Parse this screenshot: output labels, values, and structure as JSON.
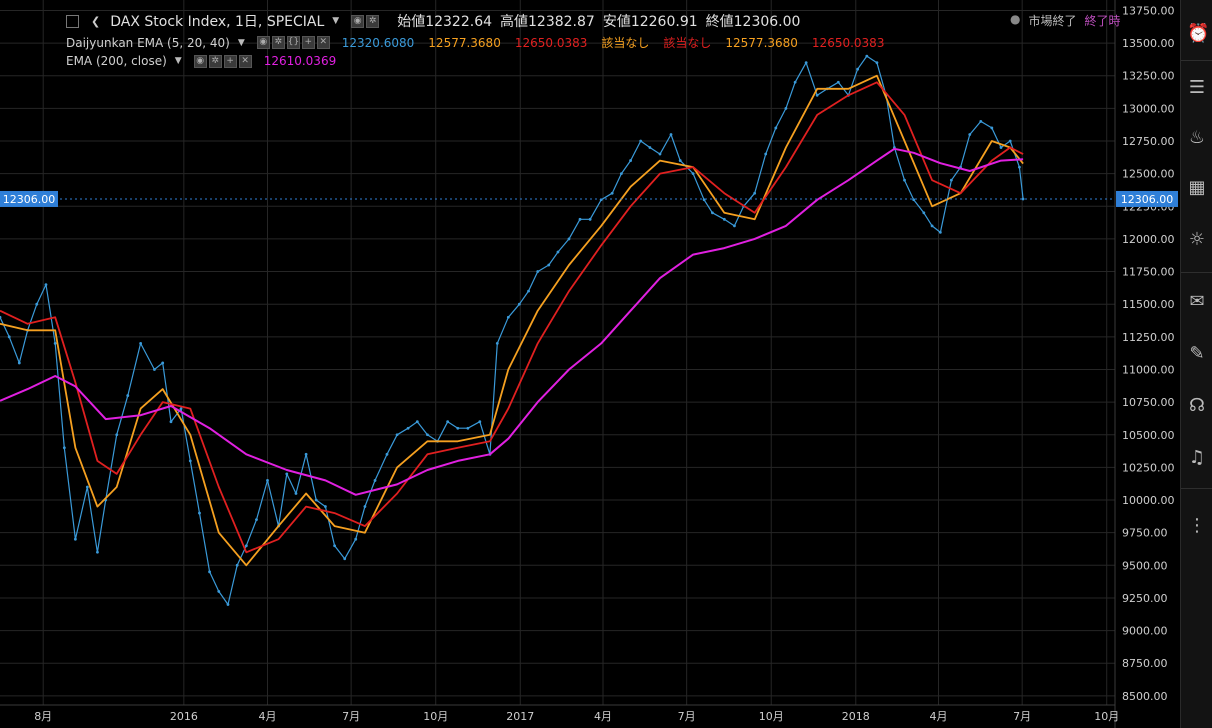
{
  "header": {
    "symbol_label": "DAX Stock Index, 1日, SPECIAL",
    "open_label": "始値",
    "open_value": "12322.64",
    "high_label": "高値",
    "high_value": "12382.87",
    "low_label": "安値",
    "low_value": "12260.91",
    "close_label": "終値",
    "close_value": "12306.00",
    "market_status": "市場終了",
    "market_close_time": "終了時"
  },
  "indicators": {
    "daijyunkan": {
      "label": "Daijyunkan EMA (5, 20, 40)",
      "v1": "12320.6080",
      "v2": "12577.3680",
      "v3": "12650.0383",
      "v4": "該当なし",
      "v5": "該当なし",
      "v6": "12577.3680",
      "v7": "12650.0383"
    },
    "ema200": {
      "label": "EMA (200, close)",
      "value": "12610.0369"
    }
  },
  "colors": {
    "price": "#3a9ad9",
    "ema5": "#3a9ad9",
    "ema20": "#f5a020",
    "ema40": "#e02020",
    "ema200": "#e020e0",
    "grid": "#262626",
    "axis_text": "#cfcfcf",
    "last_price_bg": "#2f7fd8"
  },
  "chart_data": {
    "type": "line",
    "title": "DAX Stock Index, 1日, SPECIAL",
    "ylim": [
      8430,
      13830
    ],
    "y_ticks": [
      8500,
      8750,
      9000,
      9250,
      9500,
      9750,
      10000,
      10250,
      10500,
      10750,
      11000,
      11250,
      11500,
      11750,
      12000,
      12250,
      12500,
      12750,
      13000,
      13250,
      13500,
      13750
    ],
    "y_tick_labels": [
      "8500.00",
      "8750.00",
      "9000.00",
      "9250.00",
      "9500.00",
      "9750.00",
      "10000.00",
      "10250.00",
      "10500.00",
      "10750.00",
      "11000.00",
      "11250.00",
      "11500.00",
      "11750.00",
      "12000.00",
      "12250.00",
      "12500.00",
      "12750.00",
      "13000.00",
      "13250.00",
      "13500.00",
      "13750.00"
    ],
    "x_start": "2015-06-15",
    "x_end": "2018-10-10",
    "x_ticks": [
      {
        "date": "2015-08-01",
        "label": "8月"
      },
      {
        "date": "2016-01-01",
        "label": "2016"
      },
      {
        "date": "2016-04-01",
        "label": "4月"
      },
      {
        "date": "2016-07-01",
        "label": "7月"
      },
      {
        "date": "2016-10-01",
        "label": "10月"
      },
      {
        "date": "2017-01-01",
        "label": "2017"
      },
      {
        "date": "2017-04-01",
        "label": "4月"
      },
      {
        "date": "2017-07-01",
        "label": "7月"
      },
      {
        "date": "2017-10-01",
        "label": "10月"
      },
      {
        "date": "2018-01-01",
        "label": "2018"
      },
      {
        "date": "2018-04-01",
        "label": "4月"
      },
      {
        "date": "2018-07-01",
        "label": "7月"
      },
      {
        "date": "2018-10-01",
        "label": "10月"
      }
    ],
    "last_price": 12306.0,
    "last_price_label": "12306.00",
    "series": [
      {
        "name": "Close",
        "x": [
          "2015-06-15",
          "2015-06-25",
          "2015-07-06",
          "2015-07-15",
          "2015-07-25",
          "2015-08-04",
          "2015-08-14",
          "2015-08-24",
          "2015-09-05",
          "2015-09-18",
          "2015-09-29",
          "2015-10-08",
          "2015-10-20",
          "2015-11-01",
          "2015-11-15",
          "2015-11-30",
          "2015-12-09",
          "2015-12-18",
          "2015-12-29",
          "2016-01-08",
          "2016-01-18",
          "2016-01-29",
          "2016-02-08",
          "2016-02-18",
          "2016-02-28",
          "2016-03-09",
          "2016-03-20",
          "2016-04-01",
          "2016-04-13",
          "2016-04-22",
          "2016-05-02",
          "2016-05-13",
          "2016-05-24",
          "2016-06-03",
          "2016-06-13",
          "2016-06-24",
          "2016-07-06",
          "2016-07-16",
          "2016-07-27",
          "2016-08-09",
          "2016-08-20",
          "2016-09-01",
          "2016-09-11",
          "2016-09-22",
          "2016-10-03",
          "2016-10-14",
          "2016-10-25",
          "2016-11-05",
          "2016-11-18",
          "2016-11-29",
          "2016-12-07",
          "2016-12-19",
          "2016-12-31",
          "2017-01-10",
          "2017-01-20",
          "2017-02-01",
          "2017-02-11",
          "2017-02-23",
          "2017-03-07",
          "2017-03-18",
          "2017-03-30",
          "2017-04-11",
          "2017-04-21",
          "2017-05-01",
          "2017-05-12",
          "2017-05-22",
          "2017-06-02",
          "2017-06-14",
          "2017-06-24",
          "2017-07-08",
          "2017-07-20",
          "2017-07-29",
          "2017-08-11",
          "2017-08-22",
          "2017-09-01",
          "2017-09-13",
          "2017-09-25",
          "2017-10-06",
          "2017-10-17",
          "2017-10-27",
          "2017-11-08",
          "2017-11-20",
          "2017-12-01",
          "2017-12-13",
          "2017-12-24",
          "2018-01-03",
          "2018-01-13",
          "2018-01-24",
          "2018-02-03",
          "2018-02-12",
          "2018-02-23",
          "2018-03-05",
          "2018-03-16",
          "2018-03-25",
          "2018-04-03",
          "2018-04-15",
          "2018-04-25",
          "2018-05-05",
          "2018-05-17",
          "2018-05-29",
          "2018-06-08",
          "2018-06-18",
          "2018-06-28",
          "2018-07-02"
        ],
        "values": [
          11400,
          11250,
          11050,
          11300,
          11500,
          11650,
          11200,
          10400,
          9700,
          10100,
          9600,
          10000,
          10500,
          10800,
          11200,
          11000,
          11050,
          10600,
          10700,
          10300,
          9900,
          9450,
          9300,
          9200,
          9500,
          9650,
          9850,
          10150,
          9800,
          10200,
          10050,
          10350,
          10000,
          9950,
          9650,
          9550,
          9700,
          9950,
          10150,
          10350,
          10500,
          10550,
          10600,
          10500,
          10450,
          10600,
          10550,
          10550,
          10600,
          10350,
          11200,
          11400,
          11500,
          11600,
          11750,
          11800,
          11900,
          12000,
          12150,
          12150,
          12300,
          12350,
          12500,
          12600,
          12750,
          12700,
          12650,
          12800,
          12600,
          12500,
          12300,
          12200,
          12150,
          12100,
          12250,
          12350,
          12650,
          12850,
          13000,
          13200,
          13350,
          13100,
          13150,
          13200,
          13100,
          13300,
          13400,
          13350,
          13100,
          12700,
          12450,
          12300,
          12200,
          12100,
          12050,
          12450,
          12550,
          12800,
          12900,
          12850,
          12700,
          12750,
          12550,
          12306
        ]
      },
      {
        "name": "EMA 20",
        "x": [
          "2015-06-15",
          "2015-07-15",
          "2015-08-14",
          "2015-09-05",
          "2015-09-29",
          "2015-10-20",
          "2015-11-15",
          "2015-12-09",
          "2016-01-08",
          "2016-02-08",
          "2016-03-09",
          "2016-04-13",
          "2016-05-13",
          "2016-06-13",
          "2016-07-16",
          "2016-08-20",
          "2016-09-22",
          "2016-10-25",
          "2016-11-29",
          "2016-12-19",
          "2017-01-20",
          "2017-02-23",
          "2017-03-30",
          "2017-05-01",
          "2017-06-02",
          "2017-07-08",
          "2017-08-11",
          "2017-09-13",
          "2017-10-17",
          "2017-11-20",
          "2017-12-24",
          "2018-01-24",
          "2018-02-23",
          "2018-03-25",
          "2018-04-25",
          "2018-05-29",
          "2018-06-18",
          "2018-07-02"
        ],
        "values": [
          11350,
          11300,
          11300,
          10400,
          9950,
          10100,
          10700,
          10850,
          10500,
          9750,
          9500,
          9800,
          10050,
          9800,
          9750,
          10250,
          10450,
          10450,
          10500,
          11000,
          11450,
          11800,
          12100,
          12400,
          12600,
          12550,
          12200,
          12150,
          12700,
          13150,
          13150,
          13250,
          12750,
          12250,
          12350,
          12750,
          12700,
          12577
        ]
      },
      {
        "name": "EMA 40",
        "x": [
          "2015-06-15",
          "2015-07-15",
          "2015-08-14",
          "2015-09-05",
          "2015-09-29",
          "2015-10-20",
          "2015-11-15",
          "2015-12-09",
          "2016-01-08",
          "2016-02-08",
          "2016-03-09",
          "2016-04-13",
          "2016-05-13",
          "2016-06-13",
          "2016-07-16",
          "2016-08-20",
          "2016-09-22",
          "2016-10-25",
          "2016-11-29",
          "2016-12-19",
          "2017-01-20",
          "2017-02-23",
          "2017-03-30",
          "2017-05-01",
          "2017-06-02",
          "2017-07-08",
          "2017-08-11",
          "2017-09-13",
          "2017-10-17",
          "2017-11-20",
          "2017-12-24",
          "2018-01-24",
          "2018-02-23",
          "2018-03-25",
          "2018-04-25",
          "2018-05-29",
          "2018-06-18",
          "2018-07-02"
        ],
        "values": [
          11450,
          11350,
          11400,
          10900,
          10300,
          10200,
          10500,
          10750,
          10700,
          10100,
          9600,
          9700,
          9950,
          9900,
          9800,
          10050,
          10350,
          10400,
          10450,
          10700,
          11200,
          11600,
          11950,
          12250,
          12500,
          12550,
          12350,
          12200,
          12550,
          12950,
          13100,
          13200,
          12950,
          12450,
          12350,
          12600,
          12700,
          12650
        ]
      },
      {
        "name": "EMA 200",
        "x": [
          "2015-06-15",
          "2015-07-15",
          "2015-08-14",
          "2015-09-05",
          "2015-10-08",
          "2015-11-15",
          "2015-12-18",
          "2016-01-29",
          "2016-03-09",
          "2016-04-22",
          "2016-06-03",
          "2016-07-06",
          "2016-08-20",
          "2016-09-22",
          "2016-10-25",
          "2016-11-29",
          "2016-12-19",
          "2017-01-20",
          "2017-02-23",
          "2017-03-30",
          "2017-05-01",
          "2017-06-02",
          "2017-07-08",
          "2017-08-11",
          "2017-09-13",
          "2017-10-17",
          "2017-11-20",
          "2017-12-24",
          "2018-01-24",
          "2018-02-12",
          "2018-03-05",
          "2018-04-03",
          "2018-05-05",
          "2018-06-08",
          "2018-07-02"
        ],
        "values": [
          10760,
          10850,
          10950,
          10870,
          10620,
          10650,
          10720,
          10550,
          10350,
          10230,
          10150,
          10040,
          10120,
          10230,
          10300,
          10350,
          10470,
          10750,
          11000,
          11200,
          11450,
          11700,
          11880,
          11930,
          12000,
          12100,
          12300,
          12450,
          12600,
          12690,
          12660,
          12580,
          12520,
          12600,
          12610
        ]
      }
    ]
  }
}
